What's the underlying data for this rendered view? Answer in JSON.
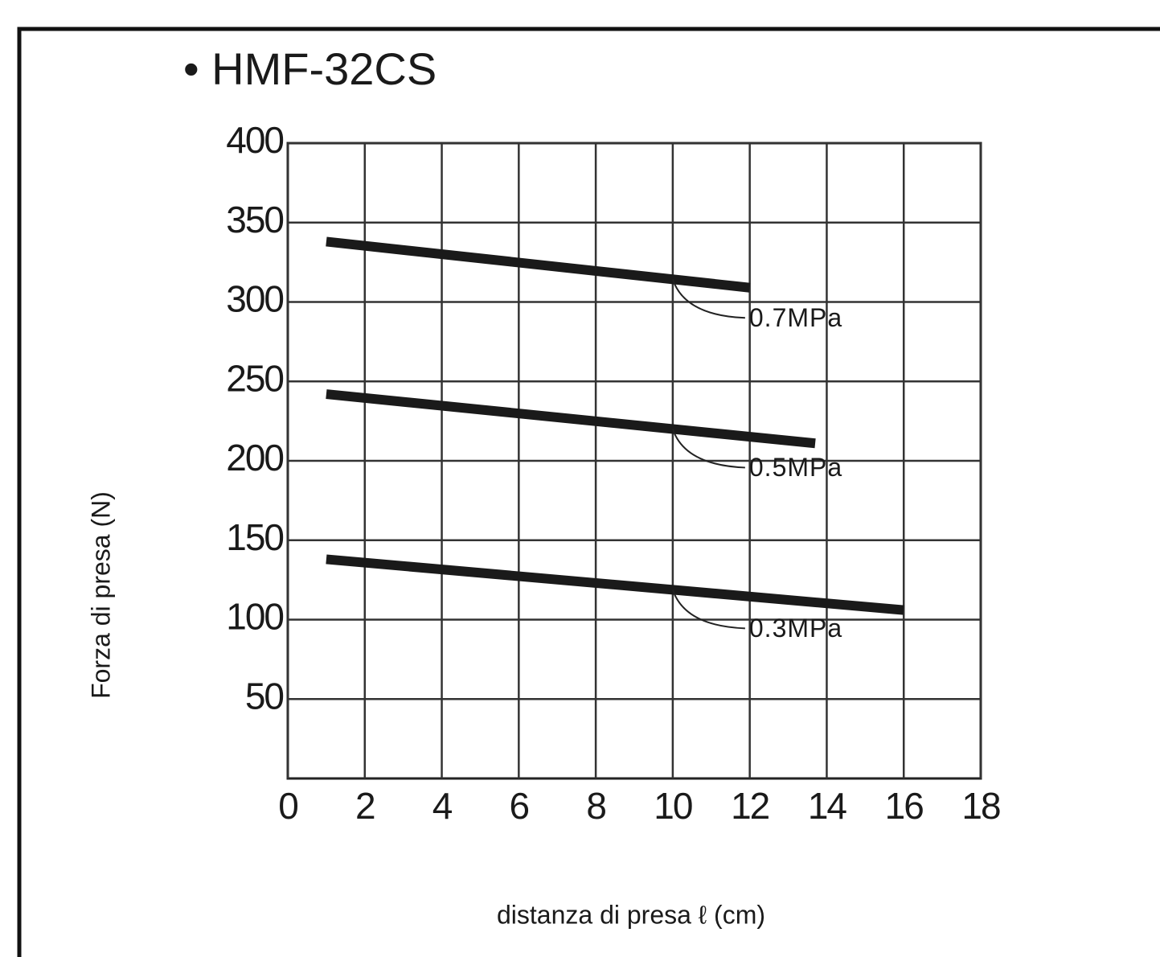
{
  "chart_data": {
    "type": "line",
    "title": "• HMF-32CS",
    "x_label": "distanza di presa ℓ (cm)",
    "y_label": "Forza di presa (N)",
    "xlim": [
      0,
      18
    ],
    "xticks": [
      0,
      2,
      4,
      6,
      8,
      10,
      12,
      14,
      16,
      18
    ],
    "ylim": [
      0,
      400
    ],
    "yticks": [
      50,
      100,
      150,
      200,
      250,
      300,
      350,
      400
    ],
    "grid": true,
    "series": [
      {
        "name": "0.7MPa",
        "color": "#1a1a1a",
        "x": [
          1,
          12
        ],
        "values": [
          338,
          309
        ]
      },
      {
        "name": "0.5MPa",
        "color": "#1a1a1a",
        "x": [
          1,
          13.7
        ],
        "values": [
          242,
          211
        ]
      },
      {
        "name": "0.3MPa",
        "color": "#1a1a1a",
        "x": [
          1,
          16
        ],
        "values": [
          138,
          106
        ]
      }
    ]
  }
}
